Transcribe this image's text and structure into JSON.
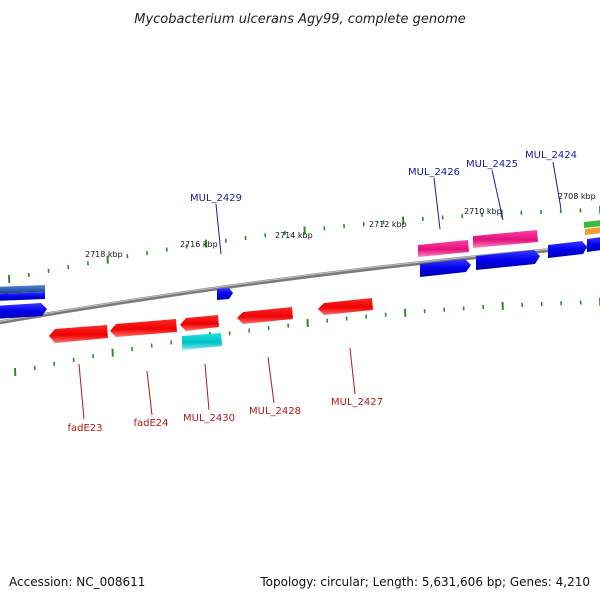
{
  "title": "Mycobacterium ulcerans Agy99, complete genome",
  "footer": {
    "accession": "Accession: NC_008611",
    "summary": "Topology: circular; Length: 5,631,606 bp; Genes: 4,210"
  },
  "colors": {
    "forward_label": "#1a1aa6",
    "reverse_label": "#b01818",
    "tick": "#2e8b2e",
    "backbone": "#808080"
  },
  "tick_labels": [
    "2718 kbp",
    "2716 kbp",
    "2714 kbp",
    "2712 kbp",
    "2710 kbp",
    "2708 kbp"
  ],
  "forward_gene_labels": [
    "MUL_2429",
    "MUL_2426",
    "MUL_2425",
    "MUL_2424"
  ],
  "reverse_gene_labels": [
    "fadE23",
    "fadE24",
    "MUL_2430",
    "MUL_2428",
    "MUL_2427"
  ]
}
